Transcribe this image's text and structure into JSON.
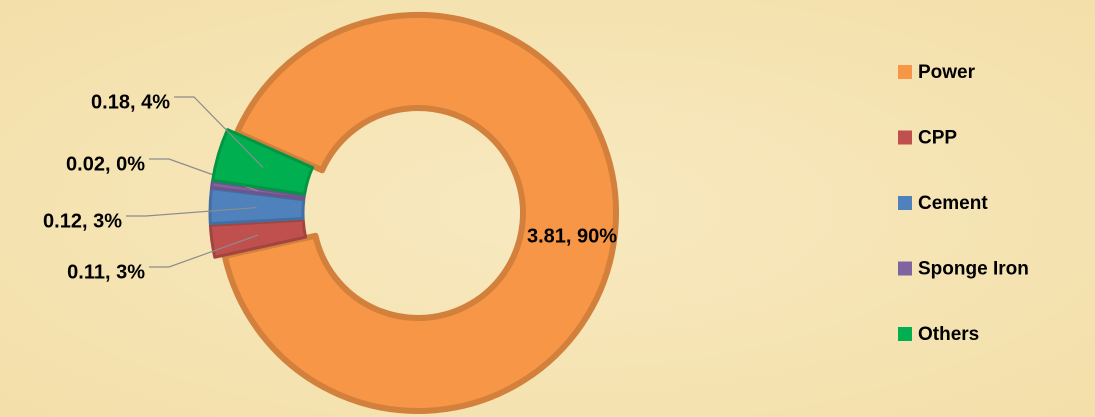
{
  "chart_data": {
    "type": "donut",
    "categories": [
      "Power",
      "CPP",
      "Cement",
      "Sponge Iron",
      "Others"
    ],
    "values": [
      3.81,
      0.11,
      0.12,
      0.02,
      0.18
    ],
    "value_labels": [
      "3.81, 90%",
      "0.11, 3%",
      "0.12, 3%",
      "0.02, 0%",
      "0.18, 4%"
    ],
    "colors": [
      "#f79646",
      "#c0504d",
      "#4f81bd",
      "#8064a2",
      "#00b050"
    ],
    "legend": "right"
  }
}
